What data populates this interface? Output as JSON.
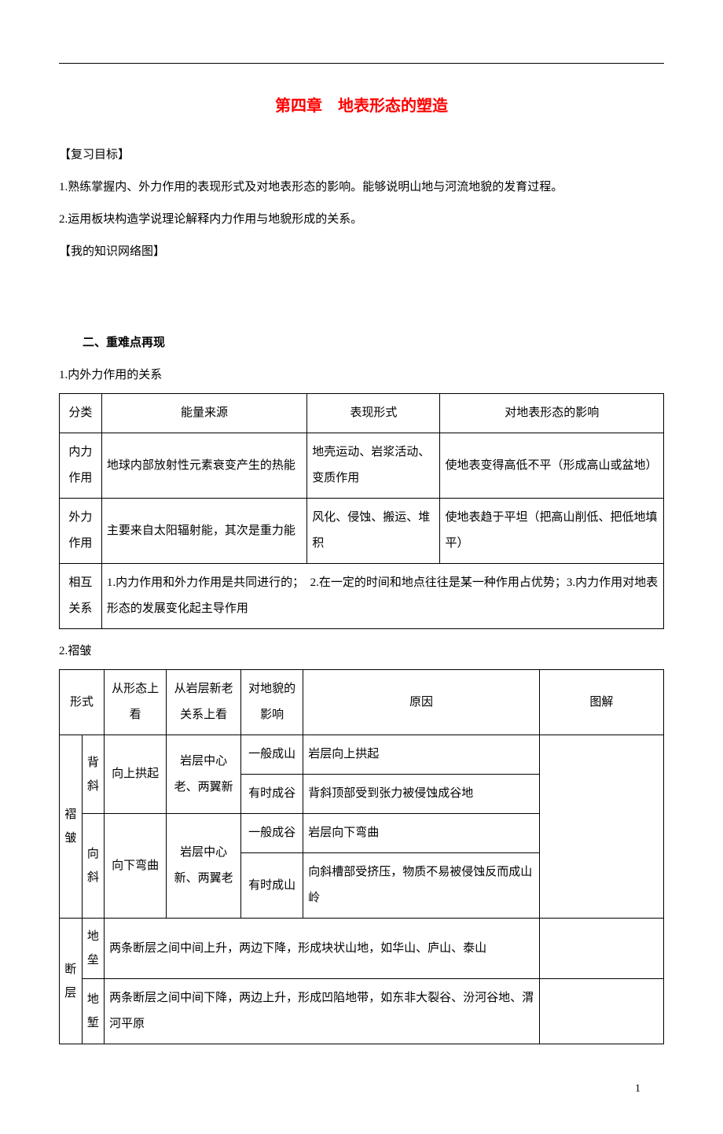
{
  "chapter_title": "第四章　地表形态的塑造",
  "section1": {
    "heading": "【复习目标】",
    "item1": "1.熟练掌握内、外力作用的表现形式及对地表形态的影响。能够说明山地与河流地貌的发育过程。",
    "item2": "2.运用板块构造学说理论解释内力作用与地貌形成的关系。"
  },
  "section2": {
    "heading": "【我的知识网络图】"
  },
  "section3": {
    "heading": "二、重难点再现",
    "sub1": "1.内外力作用的关系",
    "sub2": "2.褶皱"
  },
  "table1": {
    "headers": {
      "col1": "分类",
      "col2": "能量来源",
      "col3": "表现形式",
      "col4": "对地表形态的影响"
    },
    "row1": {
      "col1": "内力作用",
      "col2": "地球内部放射性元素衰变产生的热能",
      "col3": "地壳运动、岩浆活动、变质作用",
      "col4": "使地表变得高低不平（形成高山或盆地）"
    },
    "row2": {
      "col1": "外力作用",
      "col2": "主要来自太阳辐射能，其次是重力能",
      "col3": "风化、侵蚀、搬运、堆积",
      "col4": "使地表趋于平坦（把高山削低、把低地填平）"
    },
    "row3": {
      "col1": "相互关系",
      "merged": "1.内力作用和外力作用是共同进行的；　2.在一定的时间和地点往往是某一种作用占优势；3.内力作用对地表形态的发展变化起主导作用"
    }
  },
  "table2": {
    "headers": {
      "col1": "形式",
      "col2": "从形态上看",
      "col3": "从岩层新老关系上看",
      "col4": "对地貌的影响",
      "col5": "原因",
      "col6": "图解"
    },
    "fold": {
      "label": "褶皱",
      "anticline": {
        "label": "背斜",
        "shape": "向上拱起",
        "age": "岩层中心老、两翼新",
        "effect1": "一般成山",
        "reason1": "岩层向上拱起",
        "effect2": "有时成谷",
        "reason2": "背斜顶部受到张力被侵蚀成谷地"
      },
      "syncline": {
        "label": "向斜",
        "shape": "向下弯曲",
        "age": "岩层中心新、两翼老",
        "effect1": "一般成谷",
        "reason1": "岩层向下弯曲",
        "effect2": "有时成山",
        "reason2": "向斜槽部受挤压，物质不易被侵蚀反而成山岭"
      }
    },
    "fault": {
      "label": "断层",
      "horst": {
        "label": "地垒",
        "desc": "两条断层之间中间上升，两边下降，形成块状山地，如华山、庐山、泰山"
      },
      "graben": {
        "label": "地堑",
        "desc": "两条断层之间中间下降，两边上升，形成凹陷地带，如东非大裂谷、汾河谷地、渭河平原"
      }
    }
  },
  "page_number": "1",
  "colors": {
    "title_color": "#ff0000",
    "text_color": "#000000",
    "border_color": "#000000",
    "background": "#ffffff"
  }
}
